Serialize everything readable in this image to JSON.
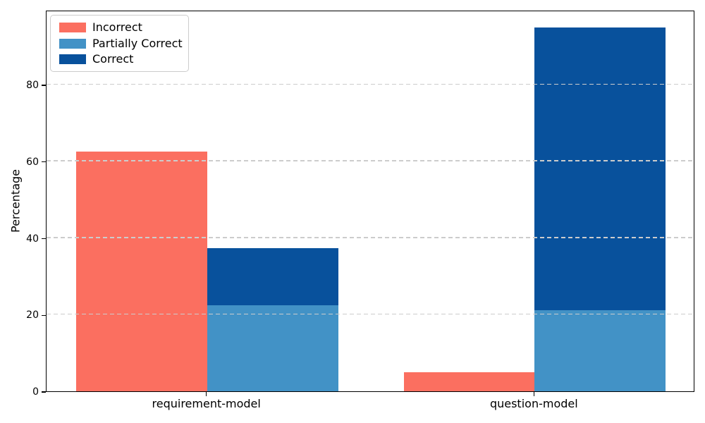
{
  "chart_data": {
    "type": "bar",
    "title": "",
    "xlabel": "",
    "ylabel": "Percentage",
    "categories": [
      "requirement-model",
      "question-model"
    ],
    "series": [
      {
        "name": "Incorrect",
        "color": "#fb6f60",
        "values": [
          62.5,
          5.0
        ],
        "placement": "left-bar"
      },
      {
        "name": "Partially Correct",
        "color": "#4292c6",
        "values": [
          22.4,
          21.1
        ],
        "placement": "right-bar-bottom"
      },
      {
        "name": "Correct",
        "color": "#08519c",
        "values": [
          15.0,
          73.9
        ],
        "placement": "right-bar-stacked-top"
      }
    ],
    "stack_tops": [
      37.4,
      95.0
    ],
    "x_positions": [
      0,
      1
    ],
    "xlim": [
      -0.49,
      1.49
    ],
    "ylim": [
      0,
      99.5
    ],
    "yticks": [
      0,
      20,
      40,
      60,
      80
    ],
    "bar_width_frac": 0.4,
    "grid": {
      "axis": "y",
      "linestyle": "dashed",
      "color": "#cccccc",
      "drawn_above_bars": true
    },
    "legend": {
      "position": "upper-left",
      "border_color": "#cccccc",
      "background": "#ffffff"
    },
    "axis_color": "#000000",
    "background": "#ffffff"
  }
}
